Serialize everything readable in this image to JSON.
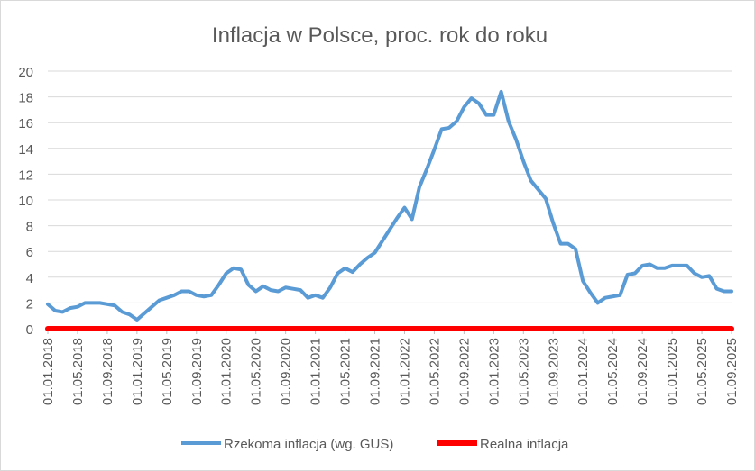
{
  "chart_data": {
    "type": "line",
    "title": "Inflacja w Polsce, proc. rok do roku",
    "xlabel": "",
    "ylabel": "",
    "ylim": [
      0,
      20
    ],
    "y_ticks": [
      0,
      2,
      4,
      6,
      8,
      10,
      12,
      14,
      16,
      18,
      20
    ],
    "grid": true,
    "legend_position": "bottom",
    "x_tick_labels": [
      "01.01.2018",
      "01.05.2018",
      "01.09.2018",
      "01.01.2019",
      "01.05.2019",
      "01.09.2019",
      "01.01.2020",
      "01.05.2020",
      "01.09.2020",
      "01.01.2021",
      "01.05.2021",
      "01.09.2021",
      "01.01.2022",
      "01.05.2022",
      "01.09.2022",
      "01.01.2023",
      "01.05.2023",
      "01.09.2023",
      "01.01.2024",
      "01.05.2024",
      "01.09.2024",
      "01.01.2025",
      "01.05.2025",
      "01.09.2025"
    ],
    "series": [
      {
        "name": "Rzekoma inflacja (wg. GUS)",
        "color": "#5b9bd5",
        "values": [
          1.9,
          1.4,
          1.3,
          1.6,
          1.7,
          2.0,
          2.0,
          2.0,
          1.9,
          1.8,
          1.3,
          1.1,
          0.7,
          1.2,
          1.7,
          2.2,
          2.4,
          2.6,
          2.9,
          2.9,
          2.6,
          2.5,
          2.6,
          3.4,
          4.3,
          4.7,
          4.6,
          3.4,
          2.9,
          3.3,
          3.0,
          2.9,
          3.2,
          3.1,
          3.0,
          2.4,
          2.6,
          2.4,
          3.2,
          4.3,
          4.7,
          4.4,
          5.0,
          5.5,
          5.9,
          6.8,
          7.7,
          8.6,
          9.4,
          8.5,
          11.0,
          12.4,
          13.9,
          15.5,
          15.6,
          16.1,
          17.2,
          17.9,
          17.5,
          16.6,
          16.6,
          18.4,
          16.1,
          14.7,
          13.0,
          11.5,
          10.8,
          10.1,
          8.2,
          6.6,
          6.6,
          6.2,
          3.7,
          2.8,
          2.0,
          2.4,
          2.5,
          2.6,
          4.2,
          4.3,
          4.9,
          5.0,
          4.7,
          4.7,
          4.9,
          4.9,
          4.9,
          4.3,
          4.0,
          4.1,
          3.1,
          2.9,
          2.9
        ]
      },
      {
        "name": "Realna inflacja",
        "color": "#ff0000",
        "values": [
          0,
          0,
          0,
          0,
          0,
          0,
          0,
          0,
          0,
          0,
          0,
          0,
          0,
          0,
          0,
          0,
          0,
          0,
          0,
          0,
          0,
          0,
          0,
          0,
          0,
          0,
          0,
          0,
          0,
          0,
          0,
          0,
          0,
          0,
          0,
          0,
          0,
          0,
          0,
          0,
          0,
          0,
          0,
          0,
          0,
          0,
          0,
          0,
          0,
          0,
          0,
          0,
          0,
          0,
          0,
          0,
          0,
          0,
          0,
          0,
          0,
          0,
          0,
          0,
          0,
          0,
          0,
          0,
          0,
          0,
          0,
          0,
          0,
          0,
          0,
          0,
          0,
          0,
          0,
          0,
          0,
          0,
          0,
          0,
          0,
          0,
          0,
          0,
          0,
          0,
          0,
          0,
          0
        ]
      }
    ]
  }
}
